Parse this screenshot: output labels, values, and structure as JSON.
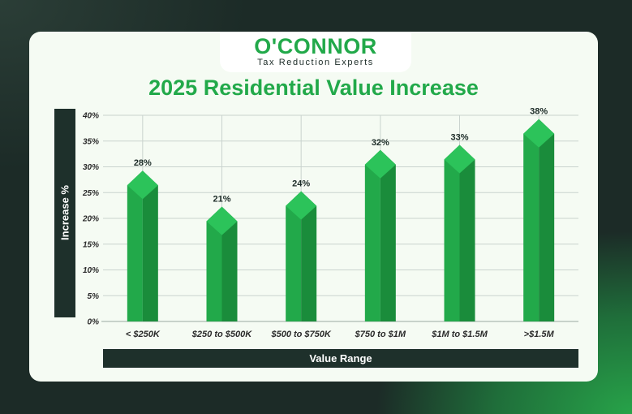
{
  "brand": {
    "name": "O'CONNOR",
    "tagline": "Tax Reduction Experts"
  },
  "colors": {
    "accent": "#22a94a",
    "bar_front": "#22a94a",
    "bar_side": "#1a8c3b",
    "bar_top": "#2cc35a",
    "dark": "#1e302b"
  },
  "chart_data": {
    "type": "bar",
    "title": "2025 Residential Value Increase",
    "xlabel": "Value Range",
    "ylabel": "Increase %",
    "categories": [
      "< $250K",
      "$250 to $500K",
      "$500 to $750K",
      "$750 to $1M",
      "$1M to $1.5M",
      ">$1.5M"
    ],
    "values": [
      28,
      21,
      24,
      32,
      33,
      38
    ],
    "value_labels": [
      "28%",
      "21%",
      "24%",
      "32%",
      "33%",
      "38%"
    ],
    "y_ticks": [
      "0%",
      "5%",
      "10%",
      "15%",
      "20%",
      "25%",
      "30%",
      "35%",
      "40%"
    ],
    "ylim": [
      0,
      40
    ],
    "grid": true,
    "legend": false
  }
}
